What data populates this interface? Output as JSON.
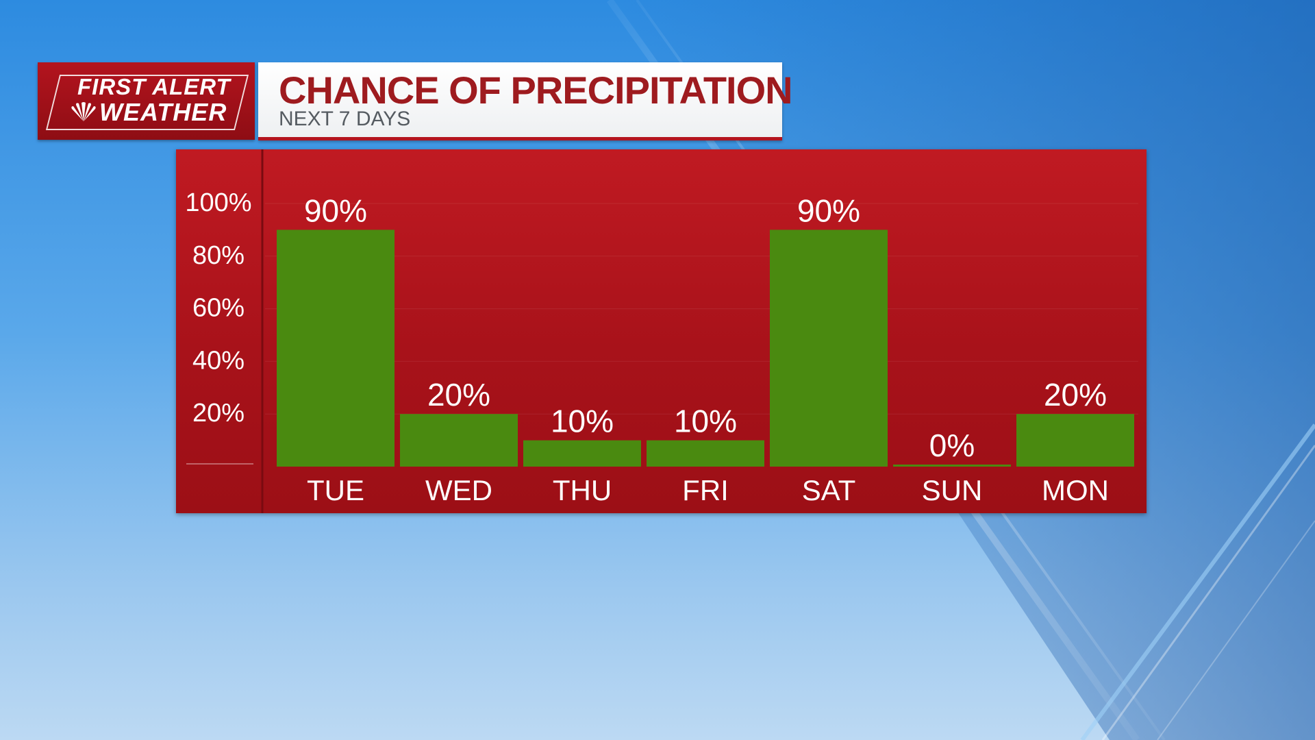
{
  "header": {
    "logo": {
      "line1": "FIRST ALERT",
      "line2": "WEATHER"
    },
    "title": "CHANCE OF PRECIPITATION",
    "subtitle": "NEXT 7 DAYS"
  },
  "colors": {
    "panel_red": "#b3141e",
    "bar_green": "#4a8a10",
    "title_red": "#9e1b1f"
  },
  "chart_data": {
    "type": "bar",
    "title": "CHANCE OF PRECIPITATION",
    "subtitle": "NEXT 7 DAYS",
    "categories": [
      "TUE",
      "WED",
      "THU",
      "FRI",
      "SAT",
      "SUN",
      "MON"
    ],
    "values": [
      90,
      20,
      10,
      10,
      90,
      0,
      20
    ],
    "value_labels": [
      "90%",
      "20%",
      "10%",
      "10%",
      "90%",
      "0%",
      "20%"
    ],
    "y_ticks": [
      "100%",
      "80%",
      "60%",
      "40%",
      "20%"
    ],
    "y_tick_values": [
      100,
      80,
      60,
      40,
      20
    ],
    "ylim": [
      0,
      100
    ],
    "xlabel": "",
    "ylabel": "",
    "grid": true,
    "legend": "none"
  }
}
